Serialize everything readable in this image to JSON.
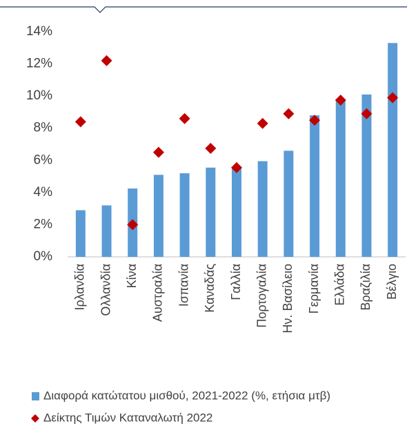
{
  "chart_data": {
    "type": "bar",
    "categories": [
      "Ιρλανδία",
      "Ολλανδία",
      "Κίνα",
      "Αυστραλία",
      "Ισπανία",
      "Καναδάς",
      "Γαλλία",
      "Πορτογαλία",
      "Ην. Βασίλειο",
      "Γερμανία",
      "Ελλάδα",
      "Βραζιλία",
      "Βέλγιο"
    ],
    "series": [
      {
        "name": "Διαφορά κατώτατου μισθού, 2021-2022 (%, ετήσια μτβ)",
        "color": "#5b9bd5",
        "mark": "bar",
        "values": [
          2.9,
          3.2,
          4.25,
          5.1,
          5.2,
          5.55,
          5.6,
          5.95,
          6.6,
          8.8,
          9.7,
          10.1,
          13.3
        ]
      },
      {
        "name": "Δείκτης Τιμών  Καταναλωτή 2022",
        "color": "#c00000",
        "mark": "diamond",
        "values": [
          8.4,
          12.2,
          2.0,
          6.5,
          8.6,
          6.75,
          5.55,
          8.3,
          8.9,
          8.5,
          9.75,
          8.9,
          9.9
        ]
      }
    ],
    "ylim": [
      0,
      14
    ],
    "yticks": [
      {
        "value": 0,
        "label": "0%"
      },
      {
        "value": 2,
        "label": "2%"
      },
      {
        "value": 4,
        "label": "4%"
      },
      {
        "value": 6,
        "label": "6%"
      },
      {
        "value": 8,
        "label": "8%"
      },
      {
        "value": 10,
        "label": "10%"
      },
      {
        "value": 12,
        "label": "12%"
      },
      {
        "value": 14,
        "label": "14%"
      }
    ],
    "grid": false,
    "legend": "bottom"
  }
}
